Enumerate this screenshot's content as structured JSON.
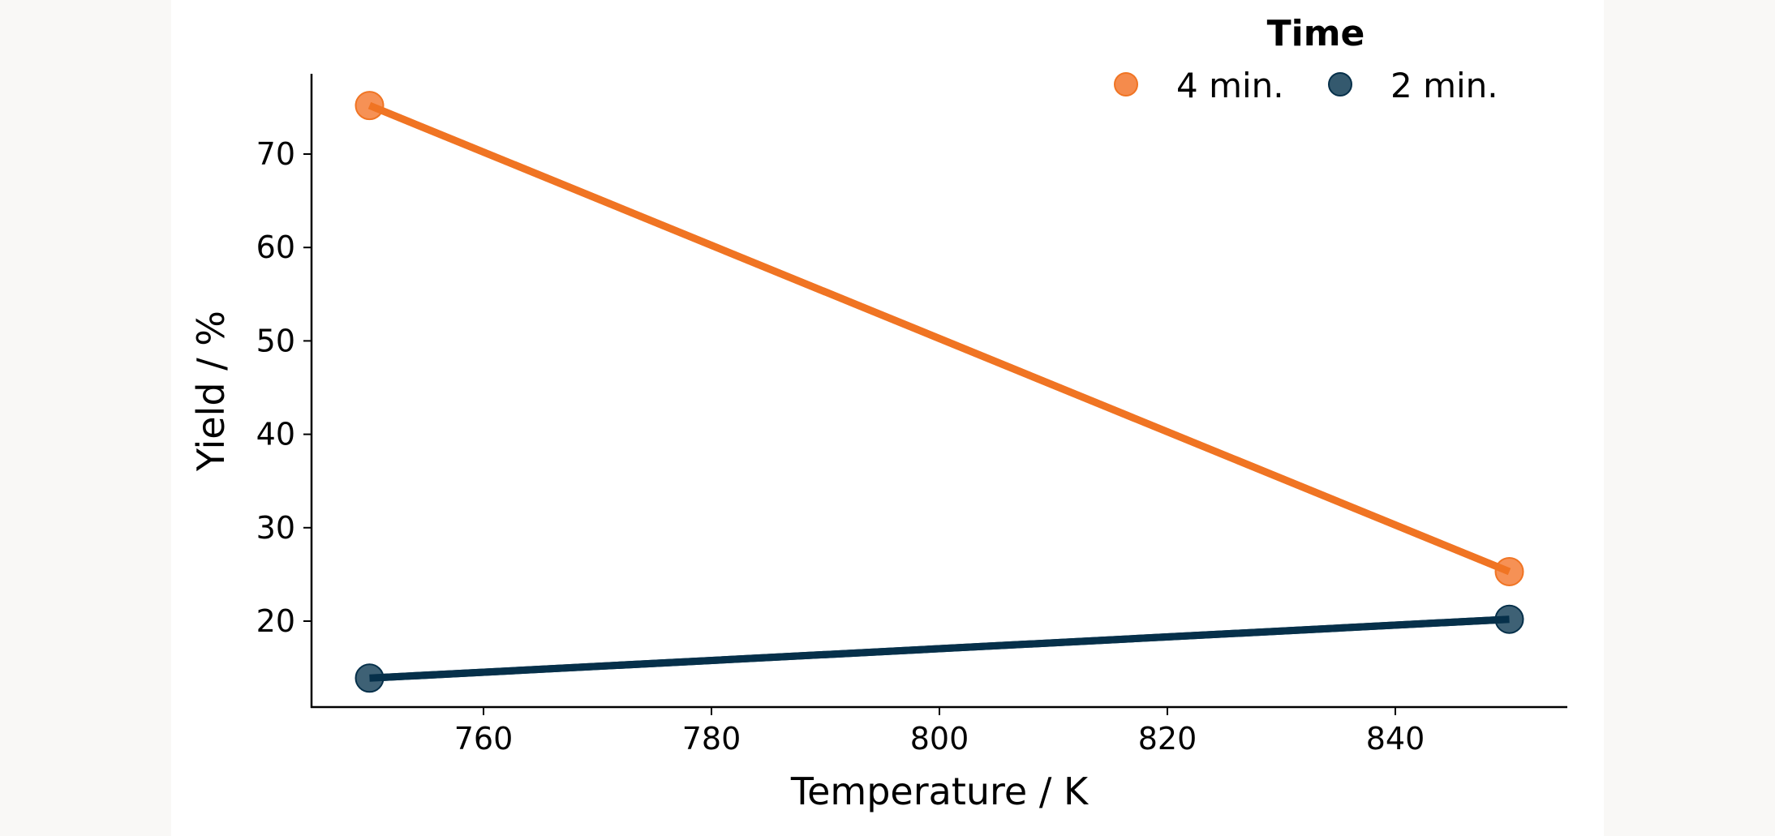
{
  "chart_data": {
    "type": "line",
    "title": "",
    "xlabel": "Temperature / K",
    "ylabel": "Yield / %",
    "xlim": [
      745,
      855
    ],
    "ylim": [
      11,
      78
    ],
    "xticks": [
      760,
      780,
      800,
      820,
      840
    ],
    "yticks": [
      20,
      30,
      40,
      50,
      60,
      70
    ],
    "grid": false,
    "legend": {
      "title": "Time",
      "placement": "top-right",
      "orientation": "horizontal"
    },
    "x": [
      750,
      850
    ],
    "series": [
      {
        "name": "4 min.",
        "values": [
          75.2,
          25.3
        ],
        "line_color": "#f07423",
        "marker_color": "#f58b4c"
      },
      {
        "name": "2 min.",
        "values": [
          13.9,
          20.2
        ],
        "line_color": "#06304a",
        "marker_color": "#34596e"
      }
    ]
  }
}
